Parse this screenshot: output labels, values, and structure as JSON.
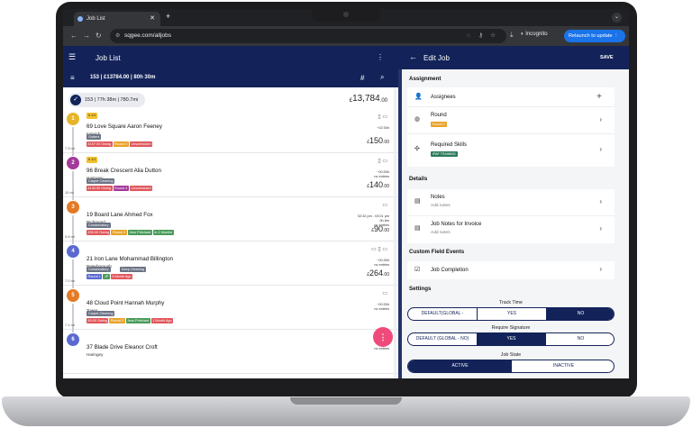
{
  "browser": {
    "tab_title": "Job List",
    "new_tab": "+",
    "url": "sqgee.com/alljobs",
    "incognito": "Incognito",
    "relaunch": "Relaunch to update"
  },
  "left": {
    "title": "Job List",
    "stats": "153 | £13784.00 | 80h 30m",
    "summary_chip": "153 | 77h 38m | 780.7mi",
    "total_main": "13,784",
    "total_dec": ".00",
    "currency": "£",
    "fab": "⋮"
  },
  "jobs": [
    {
      "num": "1",
      "color": "#e5b52a",
      "sev": "1/1",
      "title": "69 Love Square Aaron Feeney",
      "sub": "Ipswich",
      "type": "Gutters",
      "tags": [
        {
          "t": "£197.00 Owing",
          "c": "#e0575c"
        },
        {
          "t": "Round 3",
          "c": "#e8a32a"
        },
        {
          "t": "Unscheduled",
          "c": "#e0575c"
        }
      ],
      "time": "~02:30h",
      "price": "150",
      "dec": ".00",
      "mi_above": "5.2 mi",
      "icons": "▯ ▭"
    },
    {
      "num": "2",
      "color": "#a33a9a",
      "sev": "1/1",
      "title": "96 Break Crescent Alia Dutton",
      "sub": "Haringey",
      "type": "Carpet Cleaning",
      "tags": [
        {
          "t": "£140.00 Owing",
          "c": "#e0575c"
        },
        {
          "t": "Round 4",
          "c": "#a33a9a"
        },
        {
          "t": "Unscheduled",
          "c": "#e0575c"
        }
      ],
      "time": "~00:30h\nno entries",
      "price": "140",
      "dec": ".00",
      "mi_above": "7.5 mi",
      "icons": "▯ ▭"
    },
    {
      "num": "3",
      "color": "#e47a25",
      "sev": "",
      "title": "19 Board Lane Ahmed Fox",
      "sub": "Richmond",
      "type": "Conservatory",
      "tags": [
        {
          "t": "£95.00 Owing",
          "c": "#e0575c"
        },
        {
          "t": "Round 3",
          "c": "#e8a32a"
        },
        {
          "t": "Jess Pritchard",
          "c": "#4a9a5a"
        },
        {
          "t": "In 2 Months",
          "c": "#4a9a5a"
        }
      ],
      "time": "02:32 pm - 03:01 pm\n0h 8m\nno entries",
      "price": "90",
      "dec": ".00",
      "mi_above": "10 mi",
      "icons": "▭"
    },
    {
      "num": "4",
      "color": "#5a6ad0",
      "sev": "",
      "title": "21 Iron Lane Mohammad Billington",
      "sub": "Peterborough",
      "type": "Conservatory",
      "tags": [
        {
          "t": "Round 1",
          "c": "#5a6ad0"
        },
        {
          "t": "JP",
          "c": "#4a9a5a"
        },
        {
          "t": "3 Month Ago",
          "c": "#e0575c"
        }
      ],
      "time": "~00:30h\nno entries",
      "price": "264",
      "dec": ".00",
      "mi_above": "5.6 mi",
      "icons": "▭ ▯ ▭",
      "type2": "Deep Cleaning"
    },
    {
      "num": "5",
      "color": "#e47a25",
      "sev": "",
      "title": "48 Cloud Point Hannah Murphy",
      "sub": "Tower",
      "type": "Carpet Cleaning",
      "tags": [
        {
          "t": "£9.00 Owing",
          "c": "#e0575c"
        },
        {
          "t": "Round 3",
          "c": "#e8a32a"
        },
        {
          "t": "Jess Pritchard",
          "c": "#4a9a5a"
        },
        {
          "t": "1 Month Ago",
          "c": "#e0575c"
        }
      ],
      "time": "~00:30h\nno entries",
      "price": "",
      "dec": "",
      "mi_above": "7.0 mi",
      "icons": "▭"
    },
    {
      "num": "6",
      "color": "#5a6ad0",
      "sev": "",
      "title": "37 Blade Drive Eleanor Croft",
      "sub": "Haringey",
      "type": "",
      "tags": [],
      "time": "no entries",
      "price": "",
      "dec": "",
      "mi_above": "7.1 mi",
      "icons": ""
    }
  ],
  "right": {
    "title": "Edit Job",
    "save": "SAVE",
    "assignment": "Assignment",
    "assignees": "Assignees",
    "round": "Round",
    "round_tag": "Round 3",
    "skills": "Required Skills",
    "skills_tag": "IPAF TRAINING",
    "details": "Details",
    "notes": "Notes",
    "notes_sub": "Add notes",
    "invoice_notes": "Job Notes for Invoice",
    "invoice_sub": "Add notes",
    "custom_events": "Custom Field Events",
    "job_completion": "Job Completion",
    "settings": "Settings",
    "track_time": "Track Time",
    "track_opts": [
      "DEFAULT(GLOBAL -",
      "YES",
      "NO"
    ],
    "require_sig": "Require Signature",
    "sig_opts": [
      "DEFAULT (GLOBAL - NO)",
      "YES",
      "NO"
    ],
    "job_state": "Job State",
    "state_opts": [
      "ACTIVE",
      "INACTIVE"
    ]
  },
  "colors": {
    "navy": "#13235a",
    "fab": "#f04a7b",
    "accent": "#1a73e8"
  }
}
